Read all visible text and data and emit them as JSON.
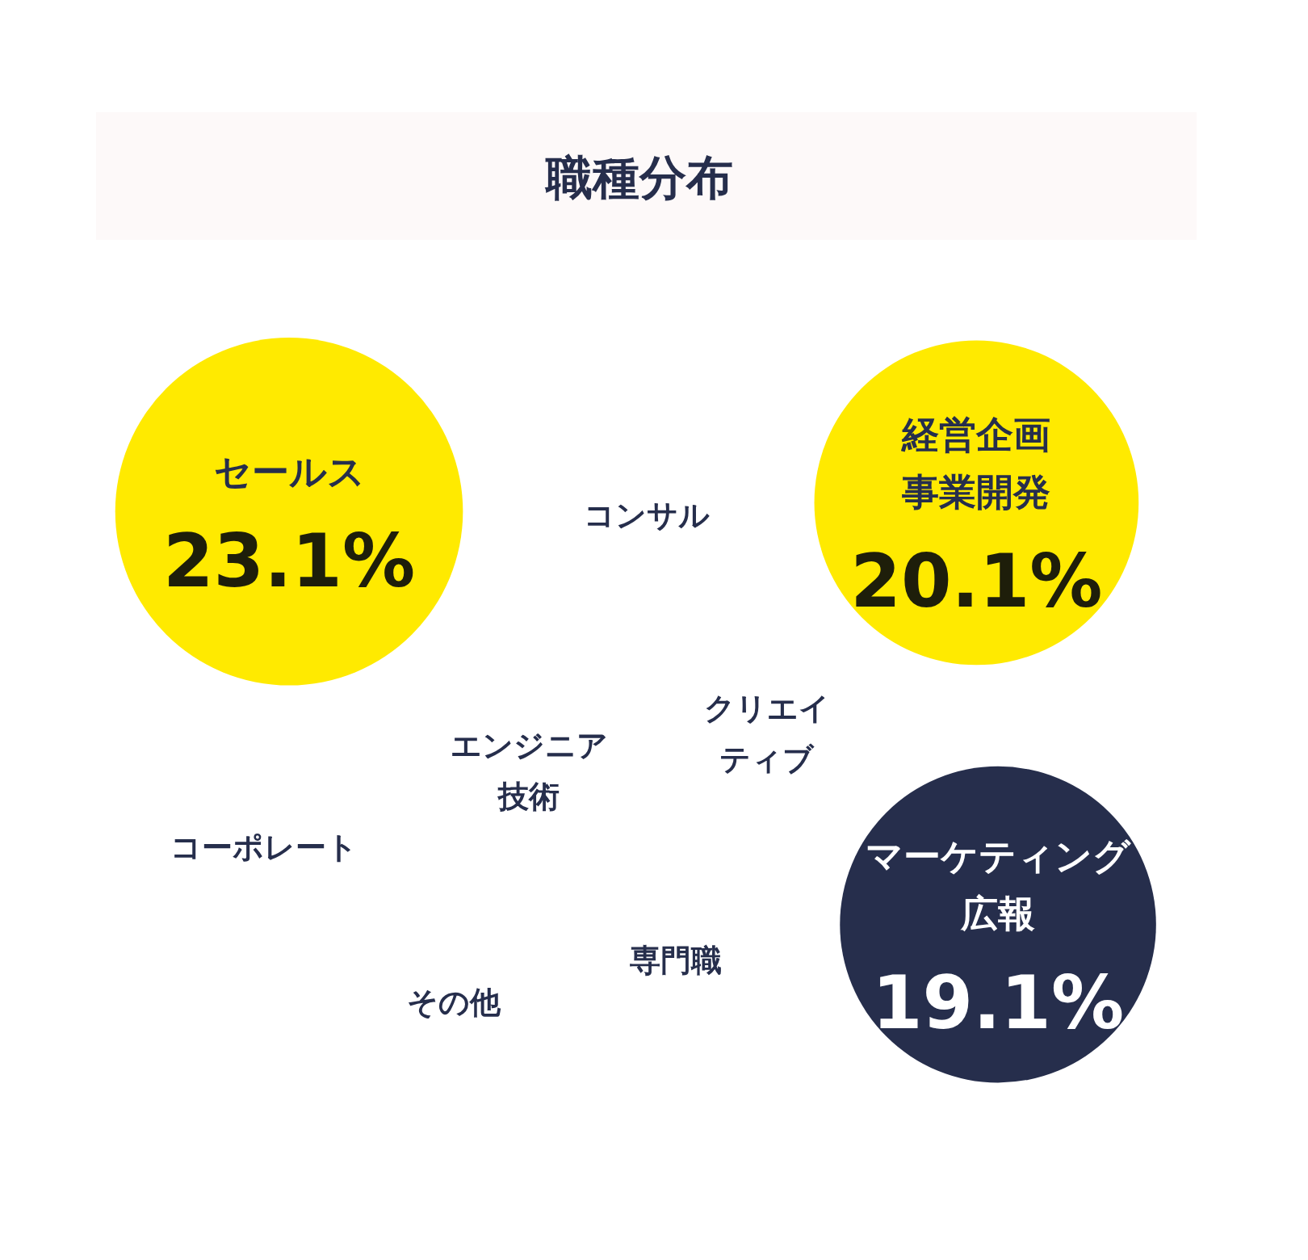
{
  "chart_data": {
    "type": "other",
    "title": "職種分布",
    "categories": [
      "セールス",
      "経営企画事業開発",
      "マーケティング広報",
      "コンサル",
      "クリエイティブ",
      "エンジニア技術",
      "コーポレート",
      "専門職",
      "その他"
    ],
    "values": [
      23.1,
      20.1,
      19.1,
      null,
      null,
      null,
      null,
      null,
      null
    ],
    "value_labels": [
      "23.1%",
      "20.1%",
      "19.1%",
      null,
      null,
      null,
      null,
      null,
      null
    ],
    "colors": [
      "#ffea00",
      "#ffea00",
      "#262e4c",
      null,
      null,
      null,
      null,
      null,
      null
    ]
  }
}
